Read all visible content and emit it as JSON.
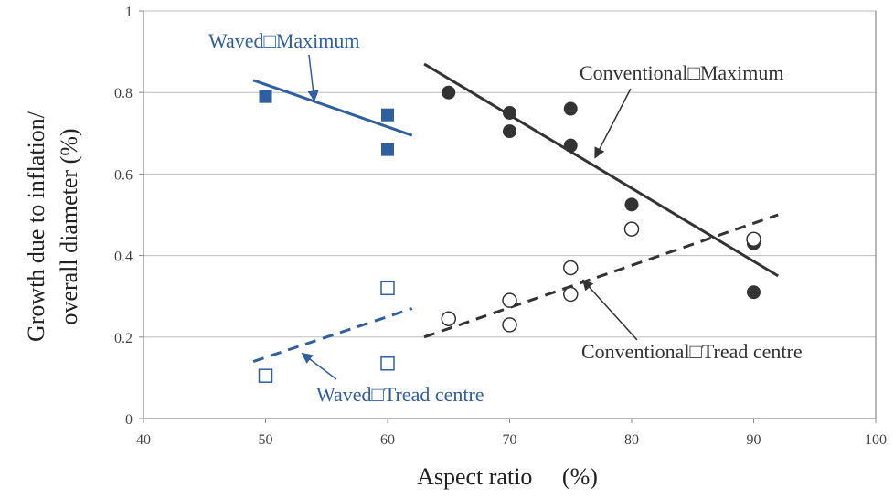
{
  "chart_data": {
    "type": "scatter",
    "title": "",
    "xlabel": "Aspect ratio　 (%)",
    "ylabel_lines": [
      "Growth due to inflation/",
      "overall diameter (%)"
    ],
    "xlim": [
      40,
      100
    ],
    "ylim": [
      0,
      1
    ],
    "x_ticks": [
      "40",
      "50",
      "60",
      "70",
      "80",
      "90",
      "100"
    ],
    "y_ticks": [
      "0",
      "0.2",
      "0.4",
      "0.6",
      "0.8",
      "1"
    ],
    "grid": "horizontal",
    "series": [
      {
        "name": "Waved□Maximum",
        "marker": "filled-square",
        "color": "#2f5f9e",
        "points": [
          [
            50,
            0.79
          ],
          [
            60,
            0.745
          ],
          [
            60,
            0.66
          ]
        ],
        "trend": {
          "style": "solid",
          "from": [
            49,
            0.83
          ],
          "to": [
            62,
            0.695
          ]
        }
      },
      {
        "name": "Waved□Tread centre",
        "marker": "open-square",
        "color": "#2f5f9e",
        "points": [
          [
            50,
            0.105
          ],
          [
            60,
            0.32
          ],
          [
            60,
            0.135
          ]
        ],
        "trend": {
          "style": "dashed",
          "from": [
            49,
            0.14
          ],
          "to": [
            62,
            0.27
          ]
        }
      },
      {
        "name": "Conventional□Maximum",
        "marker": "filled-circle",
        "color": "#333333",
        "points": [
          [
            65,
            0.8
          ],
          [
            70,
            0.75
          ],
          [
            70,
            0.705
          ],
          [
            75,
            0.76
          ],
          [
            75,
            0.67
          ],
          [
            80,
            0.525
          ],
          [
            90,
            0.43
          ],
          [
            90,
            0.31
          ]
        ],
        "trend": {
          "style": "solid",
          "from": [
            63,
            0.87
          ],
          "to": [
            92,
            0.35
          ]
        }
      },
      {
        "name": "Conventional□Tread centre",
        "marker": "open-circle",
        "color": "#333333",
        "points": [
          [
            65,
            0.245
          ],
          [
            70,
            0.29
          ],
          [
            70,
            0.23
          ],
          [
            75,
            0.37
          ],
          [
            75,
            0.305
          ],
          [
            80,
            0.465
          ],
          [
            90,
            0.44
          ]
        ],
        "trend": {
          "style": "dashed",
          "from": [
            63,
            0.2
          ],
          "to": [
            92,
            0.5
          ]
        }
      }
    ],
    "annotations": [
      {
        "text": "Waved□Maximum",
        "series": 0,
        "arrow_to": [
          54,
          0.78
        ]
      },
      {
        "text": "Conventional□Maximum",
        "series": 2,
        "arrow_to": [
          77,
          0.64
        ]
      },
      {
        "text": "Waved□Tread centre",
        "series": 1,
        "arrow_to": [
          53,
          0.16
        ]
      },
      {
        "text": "Conventional□Tread centre",
        "series": 3,
        "arrow_to": [
          76,
          0.34
        ]
      }
    ]
  }
}
